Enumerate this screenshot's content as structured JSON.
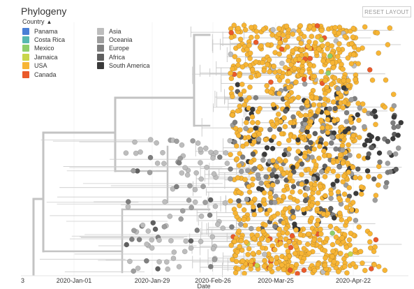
{
  "panel": {
    "title": "Phylogeny",
    "reset_label": "RESET LAYOUT"
  },
  "legend": {
    "header": "Country",
    "items_left": [
      {
        "label": "Panama",
        "color": "#4a7fd6"
      },
      {
        "label": "Costa Rica",
        "color": "#57b8b0"
      },
      {
        "label": "Mexico",
        "color": "#8fce6a"
      },
      {
        "label": "Jamaica",
        "color": "#c9d64a"
      },
      {
        "label": "USA",
        "color": "#f7b535"
      },
      {
        "label": "Canada",
        "color": "#ea5a2b"
      }
    ],
    "items_right": [
      {
        "label": "Asia",
        "color": "#bdbdbd"
      },
      {
        "label": "Oceania",
        "color": "#9e9e9e"
      },
      {
        "label": "Europe",
        "color": "#7f7f7f"
      },
      {
        "label": "Africa",
        "color": "#5f5f5f"
      },
      {
        "label": "South America",
        "color": "#3a3a3a"
      }
    ]
  },
  "axis": {
    "label": "Date",
    "left_partial": "3",
    "ticks": [
      "2020-Jan-01",
      "2020-Jan-29",
      "2020-Feb-26",
      "2020-Mar-25",
      "2020-Apr-22"
    ]
  }
}
